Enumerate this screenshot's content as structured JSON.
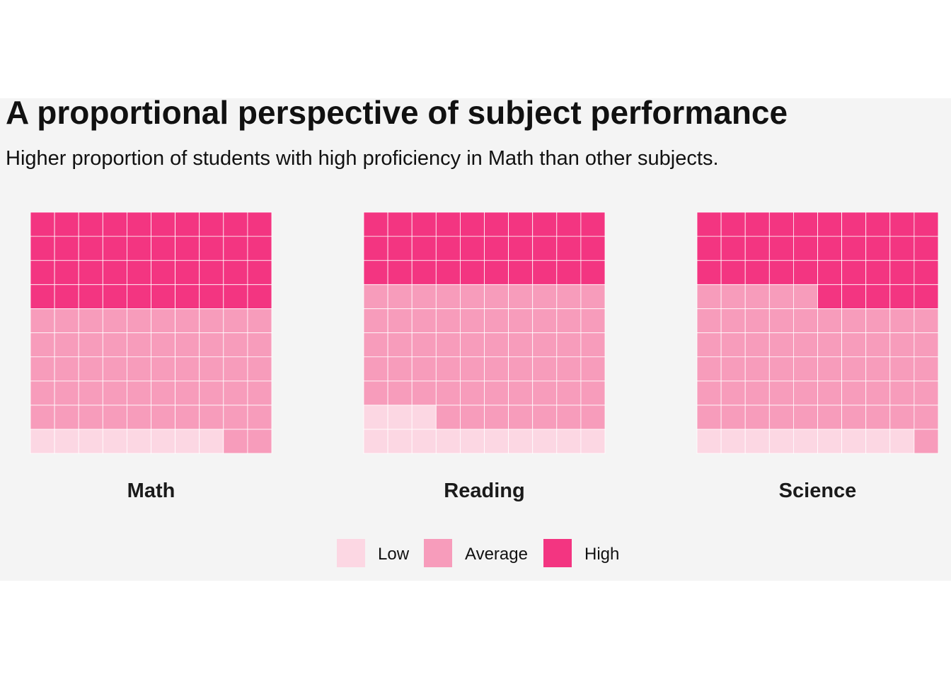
{
  "title": "A proportional perspective of subject performance",
  "subtitle": "Higher proportion of students with high proficiency in Math than other subjects.",
  "chart_data": {
    "type": "waffle",
    "grid": {
      "rows": 10,
      "cols": 10
    },
    "categories": [
      "Low",
      "Average",
      "High"
    ],
    "colors": {
      "Low": "#fcd7e3",
      "Average": "#f79cbb",
      "High": "#f33581"
    },
    "panels": [
      {
        "name": "Math",
        "values": {
          "Low": 8,
          "Average": 52,
          "High": 40
        }
      },
      {
        "name": "Reading",
        "values": {
          "Low": 13,
          "Average": 57,
          "High": 30
        }
      },
      {
        "name": "Science",
        "values": {
          "Low": 9,
          "Average": 56,
          "High": 35
        }
      }
    ],
    "legend": {
      "position": "bottom",
      "items": [
        {
          "label": "Low",
          "color": "#fcd7e3"
        },
        {
          "label": "Average",
          "color": "#f79cbb"
        },
        {
          "label": "High",
          "color": "#f33581"
        }
      ]
    }
  }
}
